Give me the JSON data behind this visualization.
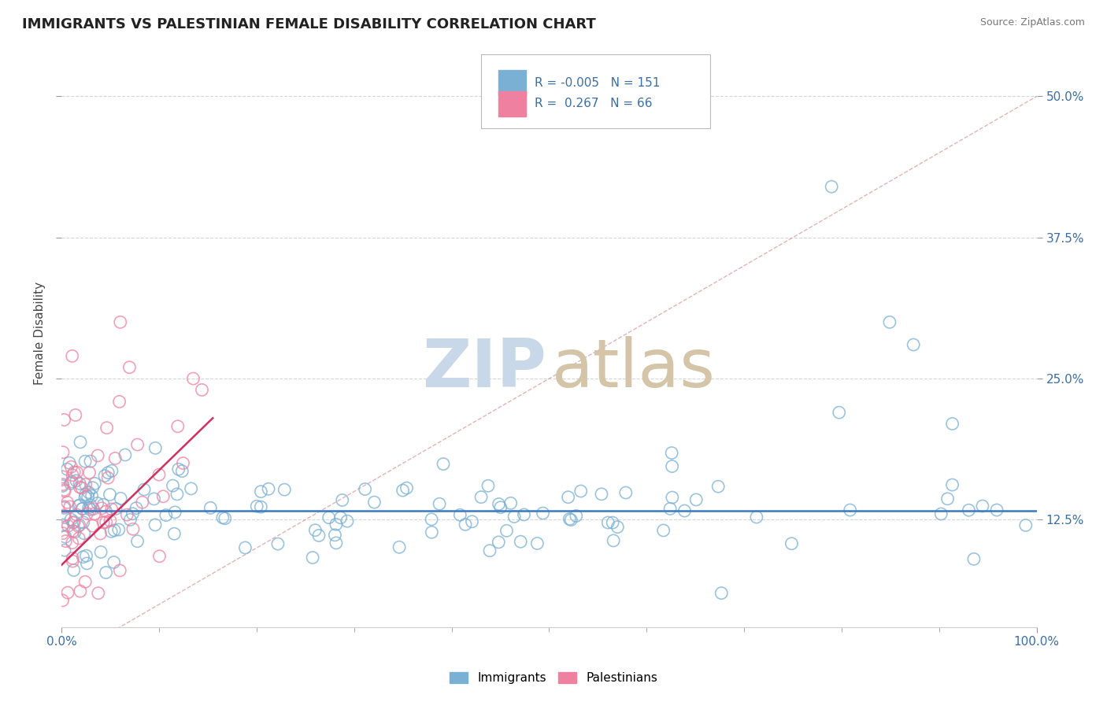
{
  "title": "IMMIGRANTS VS PALESTINIAN FEMALE DISABILITY CORRELATION CHART",
  "source": "Source: ZipAtlas.com",
  "ylabel": "Female Disability",
  "xlim": [
    0.0,
    1.0
  ],
  "ylim": [
    0.03,
    0.55
  ],
  "yticks": [
    0.125,
    0.25,
    0.375,
    0.5
  ],
  "ytick_labels": [
    "12.5%",
    "25.0%",
    "37.5%",
    "50.0%"
  ],
  "legend_box": {
    "blue_R": "-0.005",
    "blue_N": "151",
    "pink_R": "0.267",
    "pink_N": "66"
  },
  "immigrants_color": "#7ab0d4",
  "palestinians_color": "#f080a0",
  "trendline_blue_color": "#3a7abf",
  "trendline_pink_color": "#d03060",
  "ref_line_color": "#e8a0b0",
  "background_color": "#ffffff",
  "watermark_zip_color": "#c8d8e8",
  "watermark_atlas_color": "#d4c4a8"
}
